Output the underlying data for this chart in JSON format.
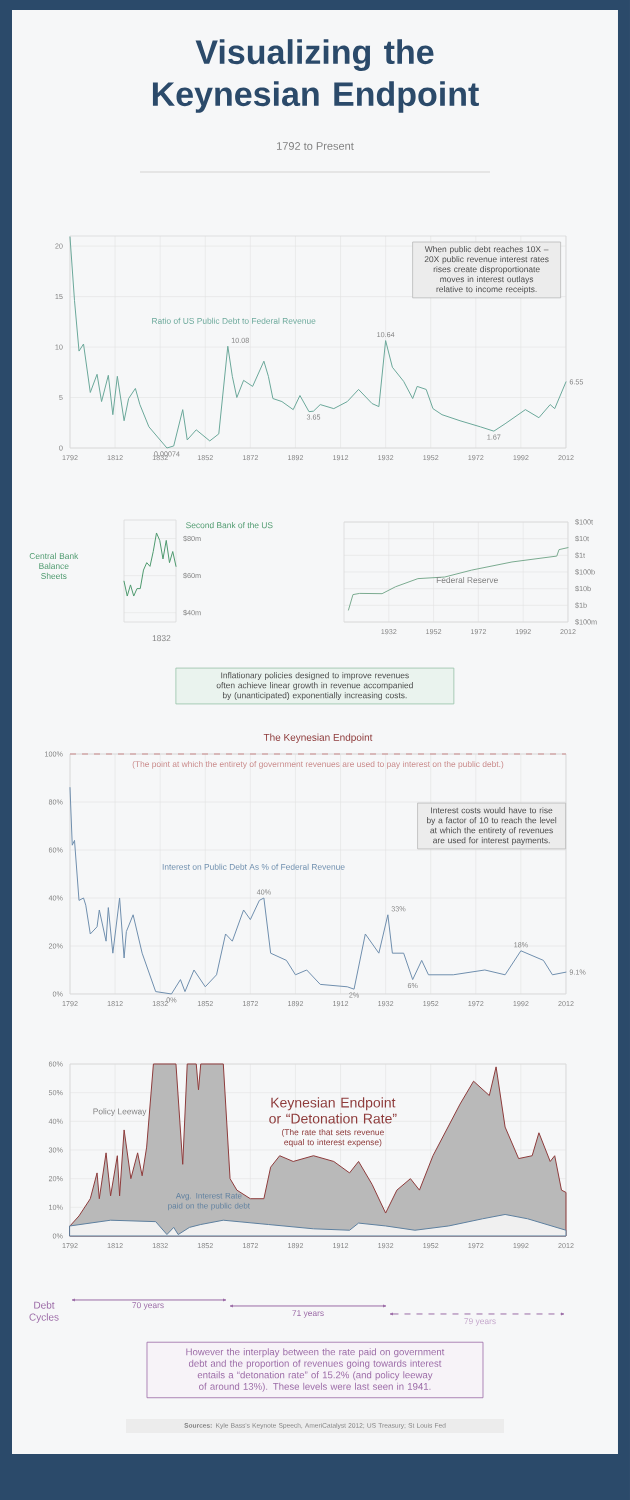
{
  "chart_data": [
    {
      "type": "line",
      "title": "Visualizing the Keynesian Endpoint",
      "subtitle": "1792 to Present",
      "xlim": [
        1792,
        2012
      ],
      "xticks": [
        1792,
        1812,
        1832,
        1852,
        1872,
        1892,
        1912,
        1932,
        1952,
        1972,
        1992,
        2012
      ],
      "ylim": [
        0,
        21
      ],
      "yticks": [
        0,
        5,
        10,
        15,
        20
      ],
      "grid": true,
      "series": [
        {
          "color": "#6aa89a",
          "x": [
            1792,
            1794,
            1796,
            1798,
            1801,
            1804,
            1806,
            1809,
            1811,
            1813,
            1816,
            1818,
            1821,
            1823,
            1827,
            1835,
            1838,
            1842,
            1844,
            1848,
            1854,
            1858,
            1862,
            1864,
            1866,
            1869,
            1873,
            1878,
            1880,
            1882,
            1886,
            1891,
            1894,
            1898,
            1900,
            1903,
            1909,
            1915,
            1920,
            1926,
            1929,
            1932,
            1935,
            1940,
            1944,
            1946,
            1950,
            1953,
            1957,
            1965,
            1974,
            1980,
            1985,
            1994,
            2000,
            2005,
            2007,
            2012
          ],
          "values": [
            20.9,
            14.6,
            9.6,
            10.3,
            5.5,
            7.3,
            4.6,
            7.2,
            3.3,
            7.1,
            2.7,
            4.9,
            5.9,
            4.3,
            2.1,
            0.00074,
            0.2,
            3.8,
            0.8,
            1.8,
            0.7,
            1.4,
            10.08,
            7.1,
            5.0,
            6.7,
            6.1,
            8.6,
            7.1,
            4.9,
            4.6,
            3.8,
            5.2,
            3.6,
            3.65,
            4.3,
            3.9,
            4.6,
            5.8,
            4.4,
            4.1,
            10.64,
            8.0,
            6.6,
            4.9,
            6.1,
            5.8,
            3.9,
            3.3,
            2.7,
            2.1,
            1.67,
            2.4,
            3.8,
            3.0,
            4.3,
            3.9,
            6.55
          ]
        }
      ],
      "annotations": [
        "Ratio of US Public Debt to Federal Revenue",
        "When public debt reaches 10X – 20X public revenue interest rates rises create disproportionate moves in interest outlays relative to income receipts.",
        {
          "text": "0.00074",
          "x": 1835,
          "y": 0.00074
        },
        {
          "text": "10.08",
          "x": 1862,
          "y": 10.08
        },
        {
          "text": "3.65",
          "x": 1900,
          "y": 3.65
        },
        {
          "text": "10.64",
          "x": 1932,
          "y": 10.64
        },
        {
          "text": "1.67",
          "x": 1980,
          "y": 1.67
        },
        {
          "text": "6.55",
          "x": 2012,
          "y": 6.55
        }
      ]
    },
    {
      "type": "line",
      "categories": [
        null,
        null,
        null,
        null,
        null,
        null,
        null,
        null,
        null,
        null,
        null,
        null,
        null,
        null,
        null,
        null,
        null
      ],
      "ylim": [
        35,
        90
      ],
      "yticks": [
        {
          "value": 40,
          "label": "$40m"
        },
        {
          "value": 60,
          "label": "$60m"
        },
        {
          "value": 80,
          "label": "$80m"
        }
      ],
      "grid": "y",
      "series": [
        {
          "color": "#4e9a6e",
          "values": [
            57,
            49,
            55,
            49,
            53,
            53,
            63,
            67,
            65,
            73,
            83,
            79,
            69,
            79,
            67,
            73,
            65
          ]
        }
      ],
      "annotations": [
        "Second Bank of the US",
        "Central Bank Balance Sheets",
        "1832"
      ]
    },
    {
      "type": "line",
      "log": true,
      "xlim": [
        1912,
        2012
      ],
      "xticks": [
        1932,
        1952,
        1972,
        1992,
        2012
      ],
      "ylim": [
        100000000,
        100000000000000
      ],
      "yticks": [
        {
          "value": 100000000,
          "label": "$100m"
        },
        {
          "value": 1000000000,
          "label": "$1b"
        },
        {
          "value": 10000000000,
          "label": "$10b"
        },
        {
          "value": 100000000000,
          "label": "$100b"
        },
        {
          "value": 1000000000000,
          "label": "$1t"
        },
        {
          "value": 10000000000000,
          "label": "$10t"
        },
        {
          "value": 100000000000000,
          "label": "$100t"
        }
      ],
      "grid": true,
      "series": [
        {
          "color": "#7aab90",
          "x": [
            1914,
            1916,
            1919,
            1929,
            1935,
            1945,
            1957,
            1969,
            1987,
            2007,
            2008,
            2012
          ],
          "values": [
            520000000,
            4400000000,
            5200000000,
            5000000000,
            13000000000,
            40000000000,
            50000000000,
            130000000000,
            400000000000,
            900000000000,
            2200000000000,
            2900000000000
          ]
        }
      ],
      "annotations": [
        "Federal Reserve",
        "Inflationary policies designed to improve revenues often achieve linear growth in revenue accompanied by (unanticipated) exponentially increasing costs."
      ]
    },
    {
      "type": "line",
      "xlim": [
        1792,
        2012
      ],
      "xticks": [
        1792,
        1812,
        1832,
        1852,
        1872,
        1892,
        1912,
        1932,
        1952,
        1972,
        1992,
        2012
      ],
      "ylim": [
        0,
        100
      ],
      "yticks": [
        {
          "value": 0,
          "label": "0%"
        },
        {
          "value": 20,
          "label": "20%"
        },
        {
          "value": 40,
          "label": "40%"
        },
        {
          "value": 60,
          "label": "60%"
        },
        {
          "value": 80,
          "label": "80%"
        },
        {
          "value": 100,
          "label": "100%"
        }
      ],
      "grid": true,
      "ref_lines": [
        {
          "axis": "y",
          "value": 100,
          "label": "The Keynesian Endpoint",
          "color": "#c98a8a",
          "line_style": "dashed"
        }
      ],
      "series": [
        {
          "color": "#6f8fae",
          "x": [
            1792,
            1793,
            1794,
            1796,
            1798,
            1799,
            1801,
            1804,
            1805,
            1808,
            1809,
            1811,
            1814,
            1816,
            1817,
            1820,
            1822,
            1824,
            1830,
            1837,
            1841,
            1843,
            1847,
            1852,
            1857,
            1861,
            1864,
            1869,
            1872,
            1876,
            1878,
            1881,
            1888,
            1892,
            1897,
            1903,
            1915,
            1918,
            1923,
            1929,
            1933,
            1935,
            1940,
            1944,
            1948,
            1951,
            1962,
            1976,
            1985,
            1992,
            2002,
            2006,
            2012
          ],
          "values": [
            86,
            62,
            64,
            39,
            40,
            37,
            25,
            28,
            35,
            22,
            36,
            17,
            40,
            15,
            26,
            33,
            25,
            17,
            1,
            0,
            6,
            1,
            10,
            3,
            8,
            25,
            22,
            35,
            31,
            39,
            40,
            17,
            14,
            8,
            10,
            4,
            3,
            2,
            25,
            17,
            33,
            17,
            17,
            6,
            14,
            8,
            8,
            10,
            8,
            18,
            14,
            8,
            9.1
          ]
        }
      ],
      "annotations": [
        "(The point at which the entirety of government revenues are used to pay interest on the public debt.)",
        "Interest on Public Debt As % of Federal Revenue",
        "Interest costs would have to rise by a factor of 10 to reach the level at which the entirety of revenues are used for interest payments.",
        {
          "text": "0%",
          "x": 1837,
          "y": 0
        },
        {
          "text": "40%",
          "x": 1878,
          "y": 40
        },
        {
          "text": "2%",
          "x": 1918,
          "y": 2
        },
        {
          "text": "33%",
          "x": 1933,
          "y": 33
        },
        {
          "text": "6%",
          "x": 1944,
          "y": 6
        },
        {
          "text": "18%",
          "x": 1992,
          "y": 18
        },
        {
          "text": "9.1%",
          "x": 2012,
          "y": 9.1
        }
      ]
    },
    {
      "type": "area",
      "xlim": [
        1792,
        2012
      ],
      "xticks": [
        1792,
        1812,
        1832,
        1852,
        1872,
        1892,
        1912,
        1932,
        1952,
        1972,
        1992,
        2012
      ],
      "ylim": [
        0,
        60
      ],
      "yticks": [
        {
          "value": 0,
          "label": "0%"
        },
        {
          "value": 10,
          "label": "10%"
        },
        {
          "value": 20,
          "label": "20%"
        },
        {
          "value": 30,
          "label": "30%"
        },
        {
          "value": 40,
          "label": "40%"
        },
        {
          "value": 50,
          "label": "50%"
        },
        {
          "value": 60,
          "label": "60%"
        }
      ],
      "grid": true,
      "series": [
        {
          "name": "Keynesian Endpoint or “Detonation Rate”",
          "color": "#8e3b3b",
          "x": [
            1792,
            1796,
            1801,
            1804,
            1805,
            1808,
            1810,
            1813,
            1814,
            1816,
            1819,
            1822,
            1824,
            1826,
            1829,
            1839,
            1842,
            1844,
            1848,
            1849,
            1850,
            1860,
            1863,
            1866,
            1872,
            1878,
            1881,
            1885,
            1891,
            1900,
            1909,
            1916,
            1920,
            1926,
            1932,
            1937,
            1943,
            1947,
            1953,
            1959,
            1965,
            1971,
            1978,
            1981,
            1985,
            1991,
            1997,
            2000,
            2005,
            2007,
            2010,
            2012
          ],
          "values": [
            3.5,
            7,
            13,
            22,
            13,
            29,
            14,
            28,
            14,
            37,
            20,
            29,
            21,
            31,
            60,
            60,
            25,
            60,
            60,
            51,
            60,
            60,
            20,
            16,
            13,
            13,
            24,
            28,
            26,
            28,
            26,
            22,
            26,
            18,
            8,
            16,
            20,
            16,
            28,
            37,
            46,
            54,
            49,
            59,
            38,
            27,
            28,
            36,
            26,
            28,
            16,
            15.2
          ]
        },
        {
          "name": "Avg. Interest Rate paid on the public debt",
          "color": "#5d7f9f",
          "x": [
            1792,
            1810,
            1830,
            1835,
            1838,
            1840,
            1845,
            1850,
            1860,
            1880,
            1900,
            1916,
            1920,
            1932,
            1945,
            1960,
            1975,
            1985,
            1995,
            2012
          ],
          "values": [
            3.5,
            5.5,
            5,
            0.5,
            3,
            0.5,
            3,
            4,
            5.5,
            4,
            2.5,
            2,
            4.5,
            3.5,
            2,
            3.5,
            6,
            7.5,
            6,
            2
          ]
        }
      ],
      "annotations": [
        "(The rate that sets revenue equal to interest expense)",
        "Policy Leeway"
      ]
    },
    {
      "type": "other",
      "annotations": [
        "Debt Cycles",
        "70 years",
        "71 years",
        "79 years",
        "However the interplay between the rate paid on government debt and the proportion of revenues going towards interest entails a “detonation rate” of 15.2% (and policy leeway of around 13%). These levels were last seen in 1941.",
        "**Sources:** Kyle Bass's Keynote Speech, AmeriCatalyst 2012; US Treasury; St Louis Fed"
      ]
    }
  ]
}
